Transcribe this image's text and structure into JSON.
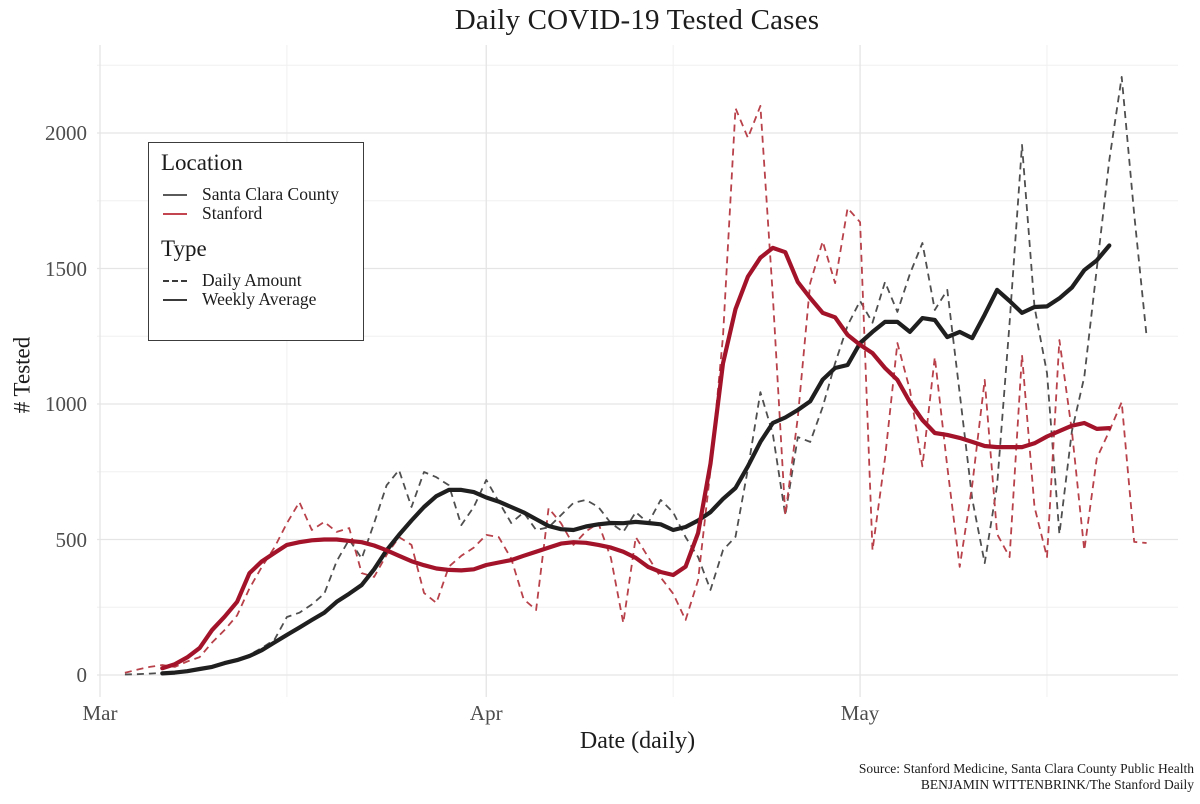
{
  "chart_data": {
    "type": "line",
    "title": "Daily COVID-19 Tested Cases",
    "xlabel": "Date (daily)",
    "ylabel": "# Tested",
    "ylim": [
      0,
      2250
    ],
    "grid": true,
    "legend_position": "top-left-inside",
    "grid_major_color": "#e5e5e5",
    "grid_minor_color": "#f0f0f0",
    "y_major": [
      0,
      500,
      1000,
      1500,
      2000
    ],
    "y_minor": [
      250,
      750,
      1250,
      1750,
      2250
    ],
    "x_major_ticks": [
      {
        "label": "Mar",
        "day": 0
      },
      {
        "label": "Apr",
        "day": 31
      },
      {
        "label": "May",
        "day": 61
      }
    ],
    "x_minor_days": [
      15,
      46,
      76
    ],
    "x_first_day_offset": 2,
    "dates": [
      "Mar 3",
      "Mar 4",
      "Mar 5",
      "Mar 6",
      "Mar 7",
      "Mar 8",
      "Mar 9",
      "Mar 10",
      "Mar 11",
      "Mar 12",
      "Mar 13",
      "Mar 14",
      "Mar 15",
      "Mar 16",
      "Mar 17",
      "Mar 18",
      "Mar 19",
      "Mar 20",
      "Mar 21",
      "Mar 22",
      "Mar 23",
      "Mar 24",
      "Mar 25",
      "Mar 26",
      "Mar 27",
      "Mar 28",
      "Mar 29",
      "Mar 30",
      "Mar 31",
      "Apr 1",
      "Apr 2",
      "Apr 3",
      "Apr 4",
      "Apr 5",
      "Apr 6",
      "Apr 7",
      "Apr 8",
      "Apr 9",
      "Apr 10",
      "Apr 11",
      "Apr 12",
      "Apr 13",
      "Apr 14",
      "Apr 15",
      "Apr 16",
      "Apr 17",
      "Apr 18",
      "Apr 19",
      "Apr 20",
      "Apr 21",
      "Apr 22",
      "Apr 23",
      "Apr 24",
      "Apr 25",
      "Apr 26",
      "Apr 27",
      "Apr 28",
      "Apr 29",
      "Apr 30",
      "May 1",
      "May 2",
      "May 3",
      "May 4",
      "May 5",
      "May 6",
      "May 7",
      "May 8",
      "May 9",
      "May 10",
      "May 11",
      "May 12",
      "May 13",
      "May 14",
      "May 15",
      "May 16",
      "May 17",
      "May 18",
      "May 19",
      "May 20",
      "May 21",
      "May 22",
      "May 23",
      "May 24"
    ],
    "series": [
      {
        "name": "Santa Clara County — Daily Amount",
        "location": "Santa Clara County",
        "line_type": "Daily Amount",
        "style": "dashed",
        "color": "#4f4f4f",
        "values": [
          2,
          3,
          5,
          8,
          10,
          14,
          20,
          28,
          45,
          55,
          75,
          100,
          130,
          214,
          230,
          260,
          300,
          420,
          500,
          430,
          560,
          700,
          756,
          620,
          749,
          730,
          700,
          553,
          620,
          720,
          640,
          561,
          600,
          535,
          545,
          590,
          635,
          646,
          620,
          560,
          528,
          601,
          560,
          646,
          600,
          509,
          435,
          314,
          461,
          510,
          760,
          1044,
          890,
          590,
          878,
          860,
          989,
          1150,
          1290,
          1380,
          1300,
          1450,
          1340,
          1480,
          1594,
          1347,
          1421,
          1040,
          650,
          413,
          700,
          1300,
          1956,
          1358,
          1114,
          520,
          900,
          1100,
          1500,
          1900,
          2207,
          1700,
          1250
        ]
      },
      {
        "name": "Stanford — Daily Amount",
        "location": "Stanford",
        "line_type": "Daily Amount",
        "style": "dashed",
        "color": "#b8414a",
        "values": [
          8,
          20,
          30,
          37,
          30,
          50,
          66,
          120,
          166,
          220,
          320,
          400,
          470,
          560,
          638,
          535,
          565,
          528,
          542,
          376,
          362,
          443,
          509,
          480,
          303,
          266,
          400,
          440,
          470,
          517,
          509,
          430,
          280,
          240,
          616,
          560,
          480,
          530,
          560,
          432,
          192,
          509,
          435,
          360,
          300,
          203,
          350,
          756,
          1250,
          2092,
          1982,
          2100,
          1400,
          590,
          950,
          1446,
          1600,
          1446,
          1723,
          1671,
          460,
          800,
          1225,
          1052,
          770,
          1173,
          768,
          399,
          700,
          1089,
          520,
          435,
          1181,
          620,
          435,
          1236,
          900,
          460,
          800,
          900,
          1007,
          491,
          487
        ]
      },
      {
        "name": "Santa Clara County — Weekly Average",
        "location": "Santa Clara County",
        "line_type": "Weekly Average",
        "style": "solid",
        "color": "#1f1f1f",
        "values": [
          null,
          null,
          null,
          6,
          9,
          14,
          22,
          30,
          44,
          55,
          70,
          92,
          120,
          148,
          175,
          203,
          230,
          270,
          300,
          332,
          390,
          460,
          517,
          570,
          620,
          660,
          683,
          683,
          675,
          655,
          640,
          620,
          600,
          575,
          550,
          538,
          535,
          548,
          556,
          561,
          560,
          565,
          561,
          556,
          535,
          546,
          570,
          601,
          650,
          690,
          770,
          860,
          930,
          950,
          978,
          1010,
          1090,
          1133,
          1144,
          1225,
          1266,
          1303,
          1303,
          1266,
          1317,
          1310,
          1247,
          1266,
          1243,
          1330,
          1421,
          1380,
          1336,
          1358,
          1360,
          1390,
          1430,
          1494,
          1530,
          1585,
          null,
          null,
          null
        ]
      },
      {
        "name": "Stanford — Weekly Average",
        "location": "Stanford",
        "line_type": "Weekly Average",
        "style": "solid",
        "color": "#a31329",
        "values": [
          null,
          null,
          null,
          25,
          40,
          65,
          100,
          166,
          215,
          270,
          376,
          420,
          450,
          480,
          490,
          497,
          500,
          500,
          495,
          490,
          478,
          460,
          440,
          420,
          405,
          393,
          388,
          386,
          390,
          406,
          415,
          424,
          440,
          455,
          470,
          485,
          490,
          488,
          480,
          470,
          455,
          432,
          399,
          380,
          369,
          400,
          524,
          780,
          1150,
          1350,
          1470,
          1540,
          1576,
          1560,
          1450,
          1391,
          1336,
          1320,
          1255,
          1218,
          1188,
          1133,
          1089,
          1007,
          941,
          893,
          886,
          875,
          860,
          845,
          841,
          841,
          841,
          855,
          880,
          900,
          920,
          930,
          908,
          911,
          null,
          null,
          null
        ]
      }
    ]
  },
  "legend": {
    "location_header": "Location",
    "location_items": [
      {
        "label": "Santa Clara County",
        "color": "#5a5a5a"
      },
      {
        "label": "Stanford",
        "color": "#c2454f"
      }
    ],
    "type_header": "Type",
    "type_items": [
      {
        "label": "Daily Amount",
        "color": "#3a3a3a"
      },
      {
        "label": "Weekly Average",
        "color": "#3a3a3a"
      }
    ]
  },
  "footer": {
    "source_line1": "Source: Stanford Medicine, Santa Clara County Public Health",
    "source_line2": "BENJAMIN WITTENBRINK/The Stanford Daily"
  }
}
